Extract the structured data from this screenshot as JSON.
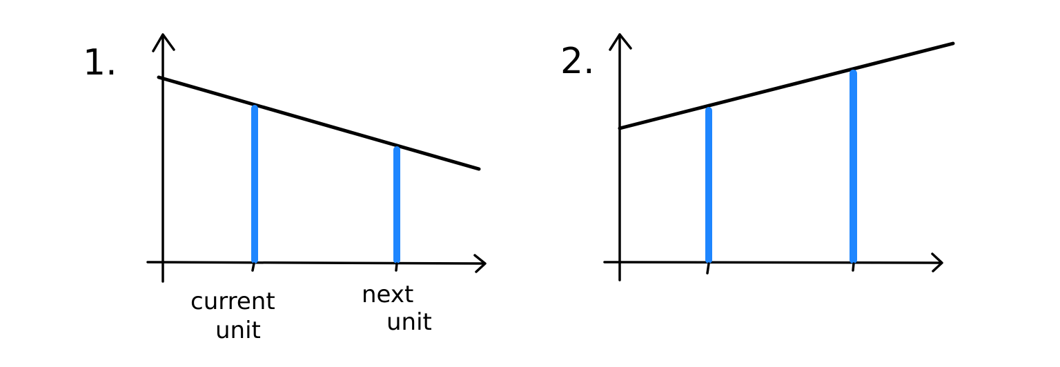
{
  "colors": {
    "ink": "#000000",
    "highlight": "#1E86FF",
    "background": "#FFFFFF"
  },
  "panels": [
    {
      "number_label": "1.",
      "trend": "decreasing",
      "markers": [
        {
          "label_line1": "current",
          "label_line2": "unit"
        },
        {
          "label_line1": "next",
          "label_line2": "unit"
        }
      ]
    },
    {
      "number_label": "2.",
      "trend": "increasing",
      "markers": [
        {
          "label_line1": "",
          "label_line2": ""
        },
        {
          "label_line1": "",
          "label_line2": ""
        }
      ]
    }
  ]
}
